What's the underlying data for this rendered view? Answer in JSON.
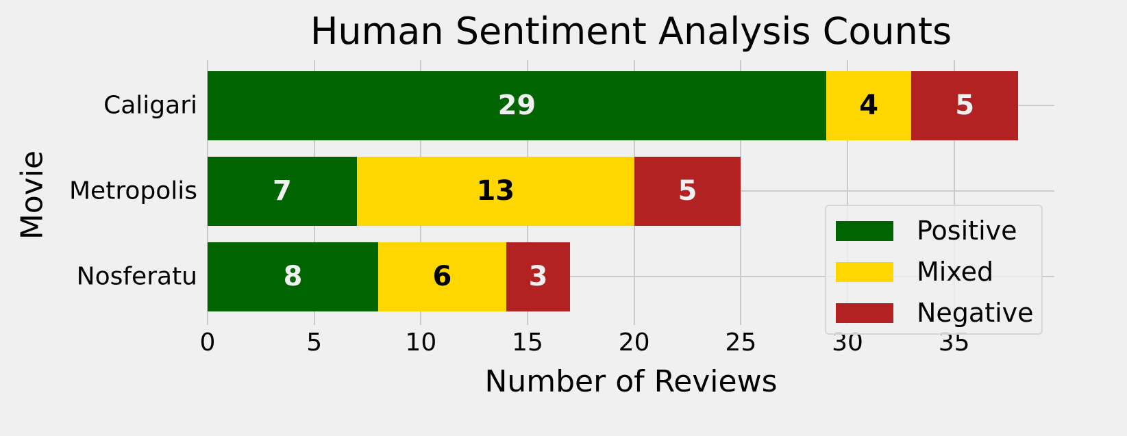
{
  "chart_data": {
    "type": "bar",
    "orientation": "horizontal",
    "stacked": true,
    "title": "Human Sentiment Analysis Counts",
    "xlabel": "Number of Reviews",
    "ylabel": "Movie",
    "categories": [
      "Caligari",
      "Metropolis",
      "Nosferatu"
    ],
    "series": [
      {
        "name": "Positive",
        "color": "#006400",
        "label_color": "#f0f0f0",
        "values": [
          29,
          7,
          8
        ]
      },
      {
        "name": "Mixed",
        "color": "#ffd700",
        "label_color": "#000000",
        "values": [
          4,
          13,
          6
        ]
      },
      {
        "name": "Negative",
        "color": "#b22222",
        "label_color": "#f0f0f0",
        "values": [
          5,
          5,
          3
        ]
      }
    ],
    "xlim": [
      0,
      39.7
    ],
    "xticks": [
      0,
      5,
      10,
      15,
      20,
      25,
      30,
      35
    ],
    "grid": true,
    "legend_position": "lower right",
    "data_labels": true
  }
}
